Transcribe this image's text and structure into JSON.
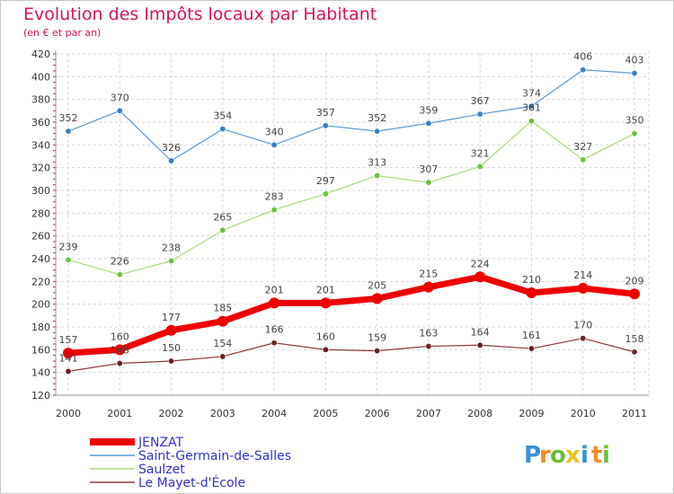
{
  "chart_data": {
    "type": "line",
    "title": "Evolution des Impôts locaux par Habitant",
    "subtitle": "(en € et par an)",
    "xlabel": "",
    "ylabel": "",
    "ylim": [
      120,
      420
    ],
    "yticks": [
      120,
      140,
      160,
      180,
      200,
      220,
      240,
      260,
      280,
      300,
      320,
      340,
      360,
      380,
      400,
      420
    ],
    "x": [
      "2000",
      "2001",
      "2002",
      "2003",
      "2004",
      "2005",
      "2006",
      "2007",
      "2008",
      "2009",
      "2010",
      "2011"
    ],
    "grid": true,
    "legend": "bottom-left",
    "series": [
      {
        "name": "Saint-Germain-de-Salles",
        "color": "#5b9bd5",
        "marker": "#3b7fc0",
        "values": [
          352,
          370,
          326,
          354,
          340,
          357,
          352,
          359,
          367,
          374,
          406,
          403
        ]
      },
      {
        "name": "Saulzet",
        "color": "#a8dc7a",
        "marker": "#6cc040",
        "values": [
          239,
          226,
          238,
          265,
          283,
          297,
          313,
          307,
          321,
          361,
          327,
          350
        ]
      },
      {
        "name": "Le Mayet-d'École",
        "color": "#8b3a3a",
        "marker": "#6b1f1f",
        "values": [
          141,
          148,
          150,
          154,
          166,
          160,
          159,
          163,
          164,
          161,
          170,
          158
        ]
      },
      {
        "name": "JENZAT",
        "color": "#ee0000",
        "marker": "#ee0000",
        "values": [
          157,
          160,
          177,
          185,
          201,
          201,
          205,
          215,
          224,
          210,
          214,
          209
        ]
      }
    ],
    "legend_order": [
      "JENZAT",
      "Saint-Germain-de-Salles",
      "Saulzet",
      "Le Mayet-d'École"
    ]
  },
  "logo": {
    "letters": [
      "P",
      "r",
      "o",
      "x",
      "i",
      "t",
      "i"
    ],
    "colors": [
      "#3a8fd9",
      "#f28c28",
      "#6cbf3a",
      "#e8c31c",
      "#3a8fd9",
      "#f28c28",
      "#6cbf3a"
    ]
  }
}
